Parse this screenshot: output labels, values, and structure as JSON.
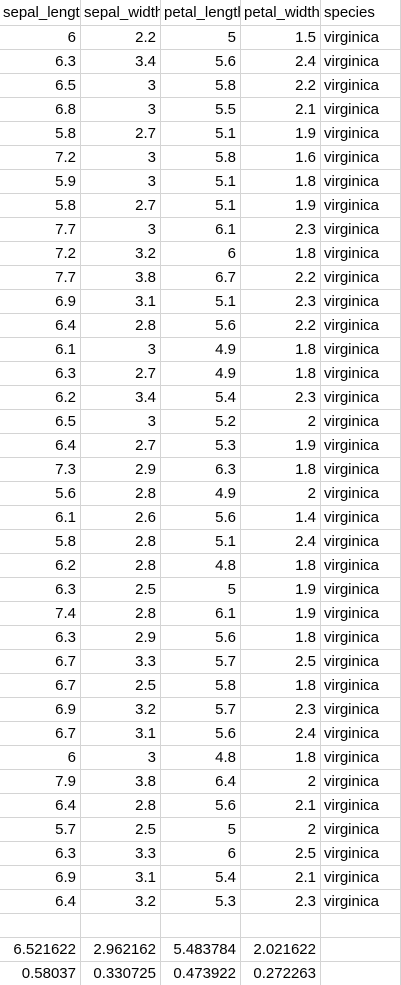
{
  "headers": [
    "sepal_length",
    "sepal_width",
    "petal_length",
    "petal_width",
    "species"
  ],
  "rows": [
    [
      "6",
      "2.2",
      "5",
      "1.5",
      "virginica"
    ],
    [
      "6.3",
      "3.4",
      "5.6",
      "2.4",
      "virginica"
    ],
    [
      "6.5",
      "3",
      "5.8",
      "2.2",
      "virginica"
    ],
    [
      "6.8",
      "3",
      "5.5",
      "2.1",
      "virginica"
    ],
    [
      "5.8",
      "2.7",
      "5.1",
      "1.9",
      "virginica"
    ],
    [
      "7.2",
      "3",
      "5.8",
      "1.6",
      "virginica"
    ],
    [
      "5.9",
      "3",
      "5.1",
      "1.8",
      "virginica"
    ],
    [
      "5.8",
      "2.7",
      "5.1",
      "1.9",
      "virginica"
    ],
    [
      "7.7",
      "3",
      "6.1",
      "2.3",
      "virginica"
    ],
    [
      "7.2",
      "3.2",
      "6",
      "1.8",
      "virginica"
    ],
    [
      "7.7",
      "3.8",
      "6.7",
      "2.2",
      "virginica"
    ],
    [
      "6.9",
      "3.1",
      "5.1",
      "2.3",
      "virginica"
    ],
    [
      "6.4",
      "2.8",
      "5.6",
      "2.2",
      "virginica"
    ],
    [
      "6.1",
      "3",
      "4.9",
      "1.8",
      "virginica"
    ],
    [
      "6.3",
      "2.7",
      "4.9",
      "1.8",
      "virginica"
    ],
    [
      "6.2",
      "3.4",
      "5.4",
      "2.3",
      "virginica"
    ],
    [
      "6.5",
      "3",
      "5.2",
      "2",
      "virginica"
    ],
    [
      "6.4",
      "2.7",
      "5.3",
      "1.9",
      "virginica"
    ],
    [
      "7.3",
      "2.9",
      "6.3",
      "1.8",
      "virginica"
    ],
    [
      "5.6",
      "2.8",
      "4.9",
      "2",
      "virginica"
    ],
    [
      "6.1",
      "2.6",
      "5.6",
      "1.4",
      "virginica"
    ],
    [
      "5.8",
      "2.8",
      "5.1",
      "2.4",
      "virginica"
    ],
    [
      "6.2",
      "2.8",
      "4.8",
      "1.8",
      "virginica"
    ],
    [
      "6.3",
      "2.5",
      "5",
      "1.9",
      "virginica"
    ],
    [
      "7.4",
      "2.8",
      "6.1",
      "1.9",
      "virginica"
    ],
    [
      "6.3",
      "2.9",
      "5.6",
      "1.8",
      "virginica"
    ],
    [
      "6.7",
      "3.3",
      "5.7",
      "2.5",
      "virginica"
    ],
    [
      "6.7",
      "2.5",
      "5.8",
      "1.8",
      "virginica"
    ],
    [
      "6.9",
      "3.2",
      "5.7",
      "2.3",
      "virginica"
    ],
    [
      "6.7",
      "3.1",
      "5.6",
      "2.4",
      "virginica"
    ],
    [
      "6",
      "3",
      "4.8",
      "1.8",
      "virginica"
    ],
    [
      "7.9",
      "3.8",
      "6.4",
      "2",
      "virginica"
    ],
    [
      "6.4",
      "2.8",
      "5.6",
      "2.1",
      "virginica"
    ],
    [
      "5.7",
      "2.5",
      "5",
      "2",
      "virginica"
    ],
    [
      "6.3",
      "3.3",
      "6",
      "2.5",
      "virginica"
    ],
    [
      "6.9",
      "3.1",
      "5.4",
      "2.1",
      "virginica"
    ],
    [
      "6.4",
      "3.2",
      "5.3",
      "2.3",
      "virginica"
    ],
    [
      "",
      "",
      "",
      "",
      ""
    ],
    [
      "6.521622",
      "2.962162",
      "5.483784",
      "2.021622",
      ""
    ],
    [
      "0.58037",
      "0.330725",
      "0.473922",
      "0.272263",
      ""
    ]
  ]
}
